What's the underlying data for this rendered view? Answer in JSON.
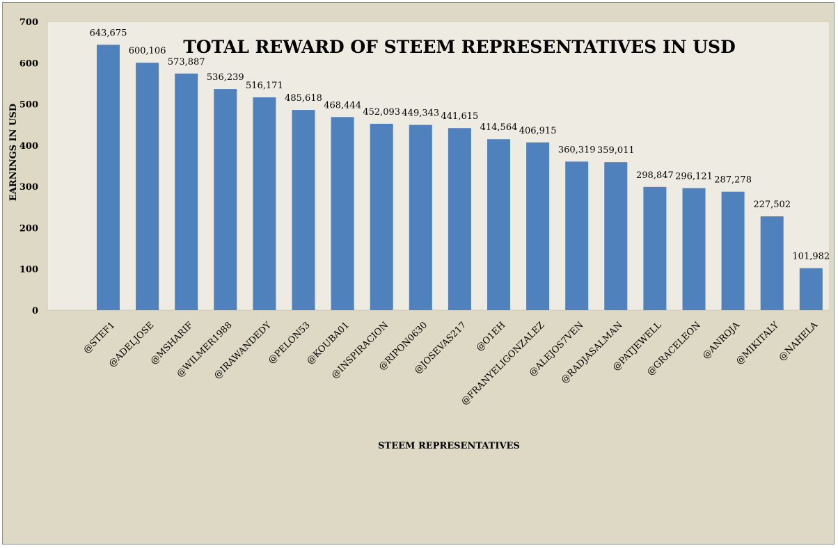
{
  "chart_data": {
    "type": "bar",
    "title": "TOTAL REWARD OF STEEM REPRESENTATIVES IN USD",
    "xlabel": "STEEM REPRESENTATIVES",
    "ylabel": "EARNINGS IN USD",
    "ylim": [
      0,
      700
    ],
    "yticks": [
      "0",
      "100",
      "200",
      "300",
      "400",
      "500",
      "600",
      "700"
    ],
    "grid": false,
    "legend": "none",
    "bar_color": "#4f81bd",
    "plot_background": "#eeebe2",
    "categories": [
      "@STEF1",
      "@ADELJOSE",
      "@MSHARIF",
      "@WILMER1988",
      "@IRAWANDEDY",
      "@PELON53",
      "@KOUBA01",
      "@INSPIRACION",
      "@RIPON0630",
      "@JOSEVAS217",
      "@O1EH",
      "@FRANYELIGONZALEZ",
      "@ALEJOS7VEN",
      "@RADJASALMAN",
      "@PATJEWELL",
      "@GRACELEON",
      "@ANROJA",
      "@MIKITALY",
      "@NAHELA"
    ],
    "values": [
      643.675,
      600.106,
      573.887,
      536.239,
      516.171,
      485.618,
      468.444,
      452.093,
      449.343,
      441.615,
      414.564,
      406.915,
      360.319,
      359.011,
      298.847,
      296.121,
      287.278,
      227.502,
      101.982
    ],
    "data_labels": [
      "643,675",
      "600,106",
      "573,887",
      "536,239",
      "516,171",
      "485,618",
      "468,444",
      "452,093",
      "449,343",
      "441,615",
      "414,564",
      "406,915",
      "360,319",
      "359,011",
      "298,847",
      "296,121",
      "287,278",
      "227,502",
      "101,982"
    ]
  }
}
